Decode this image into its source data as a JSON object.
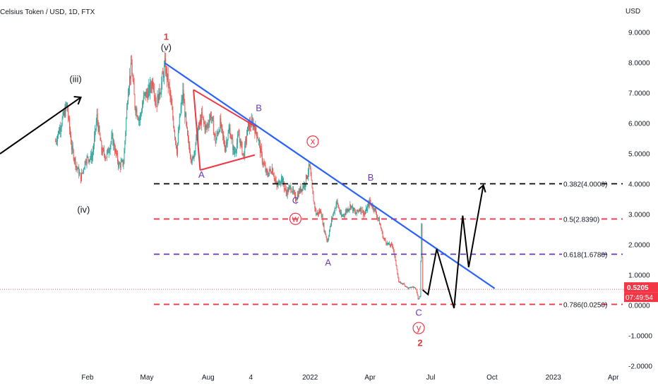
{
  "chart_data": {
    "type": "candlestick",
    "title": "Celsius Token / USD, 1D, FTX",
    "currency_label": "USD",
    "y_ticks": [
      "9.0000",
      "8.0000",
      "7.0000",
      "6.0000",
      "5.0000",
      "4.0000",
      "3.0000",
      "2.0000",
      "1.0000",
      "0.0000",
      "-1.0000",
      "-2.0000"
    ],
    "y_tick_values": [
      9,
      8,
      7,
      6,
      5,
      4,
      3,
      2,
      1,
      0,
      -1,
      -2
    ],
    "ylim": [
      -2.05,
      9.8
    ],
    "x_ticks": [
      "Feb",
      "May",
      "Aug",
      "4",
      "2022",
      "Apr",
      "Jul",
      "Oct",
      "2023",
      "Apr"
    ],
    "x_tick_dates": [
      "2021-02-01",
      "2021-05-01",
      "2021-08-01",
      "2021-10-04",
      "2022-01-01",
      "2022-04-01",
      "2022-07-01",
      "2022-10-01",
      "2023-01-01",
      "2023-04-01"
    ],
    "last_price": "0.5205",
    "countdown": "07:49:54",
    "last_price_value": 0.5205,
    "price_series": [
      {
        "date": "2020-12-15",
        "price": 5.4
      },
      {
        "date": "2021-01-01",
        "price": 6.6
      },
      {
        "date": "2021-01-08",
        "price": 5.2
      },
      {
        "date": "2021-01-15",
        "price": 4.6
      },
      {
        "date": "2021-01-22",
        "price": 4.2
      },
      {
        "date": "2021-01-29",
        "price": 4.8
      },
      {
        "date": "2021-02-08",
        "price": 4.9
      },
      {
        "date": "2021-02-15",
        "price": 6.2
      },
      {
        "date": "2021-02-22",
        "price": 5.1
      },
      {
        "date": "2021-03-01",
        "price": 4.9
      },
      {
        "date": "2021-03-10",
        "price": 5.5
      },
      {
        "date": "2021-03-20",
        "price": 4.6
      },
      {
        "date": "2021-03-27",
        "price": 4.7
      },
      {
        "date": "2021-04-03",
        "price": 7.2
      },
      {
        "date": "2021-04-08",
        "price": 7.9
      },
      {
        "date": "2021-04-13",
        "price": 6.6
      },
      {
        "date": "2021-04-20",
        "price": 6.1
      },
      {
        "date": "2021-04-27",
        "price": 6.9
      },
      {
        "date": "2021-05-03",
        "price": 7.0
      },
      {
        "date": "2021-05-10",
        "price": 7.4
      },
      {
        "date": "2021-05-15",
        "price": 6.6
      },
      {
        "date": "2021-05-22",
        "price": 7.2
      },
      {
        "date": "2021-05-28",
        "price": 7.9
      },
      {
        "date": "2021-06-03",
        "price": 7.2
      },
      {
        "date": "2021-06-10",
        "price": 6.0
      },
      {
        "date": "2021-06-15",
        "price": 5.1
      },
      {
        "date": "2021-06-20",
        "price": 6.3
      },
      {
        "date": "2021-06-24",
        "price": 7.0
      },
      {
        "date": "2021-07-01",
        "price": 5.5
      },
      {
        "date": "2021-07-08",
        "price": 4.7
      },
      {
        "date": "2021-07-15",
        "price": 5.6
      },
      {
        "date": "2021-07-22",
        "price": 6.2
      },
      {
        "date": "2021-07-29",
        "price": 5.8
      },
      {
        "date": "2021-08-05",
        "price": 6.3
      },
      {
        "date": "2021-08-12",
        "price": 5.4
      },
      {
        "date": "2021-08-19",
        "price": 6.0
      },
      {
        "date": "2021-08-26",
        "price": 5.2
      },
      {
        "date": "2021-09-02",
        "price": 5.8
      },
      {
        "date": "2021-09-09",
        "price": 5.0
      },
      {
        "date": "2021-09-16",
        "price": 5.6
      },
      {
        "date": "2021-09-23",
        "price": 4.9
      },
      {
        "date": "2021-09-30",
        "price": 5.9
      },
      {
        "date": "2021-10-07",
        "price": 6.0
      },
      {
        "date": "2021-10-14",
        "price": 5.6
      },
      {
        "date": "2021-10-21",
        "price": 4.8
      },
      {
        "date": "2021-10-28",
        "price": 4.3
      },
      {
        "date": "2021-11-05",
        "price": 4.5
      },
      {
        "date": "2021-11-12",
        "price": 3.9
      },
      {
        "date": "2021-11-19",
        "price": 4.2
      },
      {
        "date": "2021-11-26",
        "price": 3.7
      },
      {
        "date": "2021-12-03",
        "price": 3.9
      },
      {
        "date": "2021-12-10",
        "price": 3.5
      },
      {
        "date": "2021-12-17",
        "price": 3.8
      },
      {
        "date": "2021-12-24",
        "price": 4.0
      },
      {
        "date": "2021-12-31",
        "price": 4.6
      },
      {
        "date": "2022-01-05",
        "price": 3.6
      },
      {
        "date": "2022-01-10",
        "price": 3.0
      },
      {
        "date": "2022-01-17",
        "price": 3.1
      },
      {
        "date": "2022-01-22",
        "price": 2.5
      },
      {
        "date": "2022-01-27",
        "price": 2.1
      },
      {
        "date": "2022-02-03",
        "price": 2.9
      },
      {
        "date": "2022-02-10",
        "price": 3.4
      },
      {
        "date": "2022-02-17",
        "price": 2.9
      },
      {
        "date": "2022-02-24",
        "price": 3.1
      },
      {
        "date": "2022-03-03",
        "price": 3.3
      },
      {
        "date": "2022-03-10",
        "price": 3.0
      },
      {
        "date": "2022-03-17",
        "price": 3.2
      },
      {
        "date": "2022-03-24",
        "price": 3.0
      },
      {
        "date": "2022-03-31",
        "price": 3.4
      },
      {
        "date": "2022-04-07",
        "price": 3.2
      },
      {
        "date": "2022-04-14",
        "price": 2.8
      },
      {
        "date": "2022-04-21",
        "price": 2.2
      },
      {
        "date": "2022-04-28",
        "price": 2.0
      },
      {
        "date": "2022-05-05",
        "price": 1.95
      },
      {
        "date": "2022-05-11",
        "price": 1.2
      },
      {
        "date": "2022-05-14",
        "price": 0.75
      },
      {
        "date": "2022-05-21",
        "price": 0.7
      },
      {
        "date": "2022-05-28",
        "price": 0.55
      },
      {
        "date": "2022-06-04",
        "price": 0.6
      },
      {
        "date": "2022-06-09",
        "price": 0.55
      },
      {
        "date": "2022-06-12",
        "price": 0.2
      },
      {
        "date": "2022-06-15",
        "price": 0.3
      },
      {
        "date": "2022-06-17",
        "price": 2.6
      },
      {
        "date": "2022-06-19",
        "price": 0.5205
      }
    ],
    "trendline": {
      "from": {
        "date": "2021-05-28",
        "price": 7.98
      },
      "to": {
        "date": "2022-10-05",
        "price": 0.55
      }
    },
    "triangle": [
      {
        "from": {
          "date": "2021-07-10",
          "price": 7.1
        },
        "to": {
          "date": "2021-10-10",
          "price": 5.9
        }
      },
      {
        "from": {
          "date": "2021-07-10",
          "price": 7.1
        },
        "to": {
          "date": "2021-07-20",
          "price": 4.45
        }
      },
      {
        "from": {
          "date": "2021-07-20",
          "price": 4.45
        },
        "to": {
          "date": "2021-10-10",
          "price": 4.95
        }
      }
    ],
    "arrow_into_iii": {
      "from": {
        "date": "2020-12-20",
        "price": 5.0
      },
      "to": {
        "date": "2021-01-22",
        "price": 6.85
      }
    },
    "projection": [
      {
        "date": "2022-06-19",
        "price": 0.5
      },
      {
        "date": "2022-06-27",
        "price": 0.35
      },
      {
        "date": "2022-07-10",
        "price": 1.85
      },
      {
        "date": "2022-08-05",
        "price": -0.1
      },
      {
        "date": "2022-08-18",
        "price": 2.95
      },
      {
        "date": "2022-08-27",
        "price": 1.25
      },
      {
        "date": "2022-09-18",
        "price": 3.95
      }
    ],
    "fib_levels": [
      {
        "label": "0.382(4.0000)",
        "value": 4.0,
        "color": "#000000"
      },
      {
        "label": "0.5(2.8390)",
        "value": 2.839,
        "color": "#f23645"
      },
      {
        "label": "0.618(1.6780)",
        "value": 1.678,
        "color": "#673ab7"
      },
      {
        "label": "0.786(0.0250)",
        "value": 0.025,
        "color": "#f23645"
      }
    ],
    "wave_labels": [
      {
        "text": "(iii)",
        "date": "2021-01-14",
        "price": 7.35,
        "color": "#131722"
      },
      {
        "text": "(iv)",
        "date": "2021-01-26",
        "price": 3.05,
        "color": "#131722"
      },
      {
        "text": "(v)",
        "date": "2021-05-30",
        "price": 8.4,
        "color": "#131722"
      },
      {
        "text": "1",
        "date": "2021-05-30",
        "price": 8.75,
        "color": "#e53935",
        "big": true
      },
      {
        "text": "A",
        "date": "2021-07-22",
        "price": 4.2,
        "color": "#673ab7"
      },
      {
        "text": "B",
        "date": "2021-10-16",
        "price": 6.4,
        "color": "#673ab7"
      },
      {
        "text": "C",
        "date": "2021-12-10",
        "price": 3.35,
        "color": "#673ab7"
      },
      {
        "text": "w",
        "date": "2021-12-10",
        "price": 2.75,
        "color": "#f23645",
        "circle": true
      },
      {
        "text": "x",
        "date": "2022-01-05",
        "price": 5.3,
        "color": "#f23645",
        "circle": true
      },
      {
        "text": "A",
        "date": "2022-01-28",
        "price": 1.3,
        "color": "#673ab7"
      },
      {
        "text": "B",
        "date": "2022-04-02",
        "price": 4.1,
        "color": "#673ab7"
      },
      {
        "text": "C",
        "date": "2022-06-13",
        "price": -0.35,
        "color": "#673ab7"
      },
      {
        "text": "y",
        "date": "2022-06-13",
        "price": -0.85,
        "color": "#f23645",
        "circle": true
      },
      {
        "text": "2",
        "date": "2022-06-15",
        "price": -1.35,
        "color": "#e53935",
        "big": true
      }
    ]
  }
}
